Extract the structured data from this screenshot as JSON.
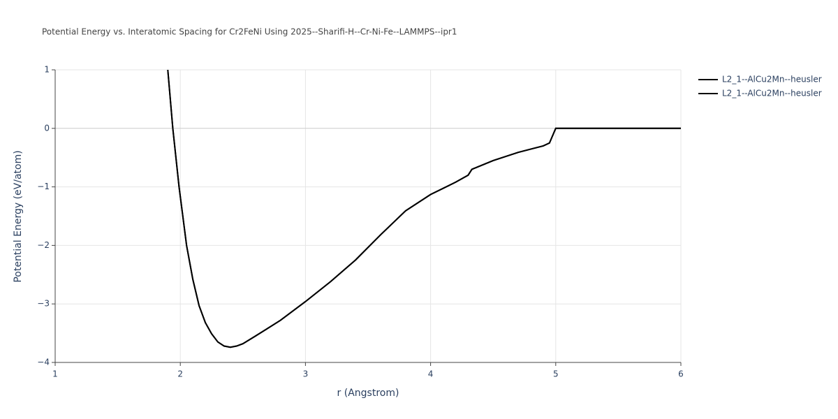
{
  "chart_data": {
    "type": "line",
    "title": "Potential Energy vs. Interatomic Spacing for Cr2FeNi Using 2025--Sharifi-H--Cr-Ni-Fe--LAMMPS--ipr1",
    "x_label": "r (Angstrom)",
    "y_label": "Potential Energy (eV/atom)",
    "x": [
      1.9,
      1.94,
      1.99,
      2.05,
      2.1,
      2.15,
      2.2,
      2.25,
      2.3,
      2.35,
      2.4,
      2.45,
      2.5,
      2.6,
      2.8,
      3.0,
      3.2,
      3.4,
      3.6,
      3.8,
      4.0,
      4.2,
      4.3,
      4.33,
      4.5,
      4.7,
      4.9,
      4.95,
      4.97,
      5.0,
      6.0
    ],
    "series": [
      {
        "name": "L2_1--AlCu2Mn--heusler",
        "color": "#000000",
        "values": [
          1,
          0,
          -1,
          -2,
          -2.58,
          -3.03,
          -3.32,
          -3.51,
          -3.65,
          -3.72,
          -3.74,
          -3.72,
          -3.68,
          -3.55,
          -3.28,
          -2.96,
          -2.62,
          -2.25,
          -1.82,
          -1.41,
          -1.13,
          -0.92,
          -0.8,
          -0.7,
          -0.55,
          -0.41,
          -0.3,
          -0.25,
          -0.15,
          0,
          0
        ]
      },
      {
        "name": "L2_1--AlCu2Mn--heusler",
        "color": "#000000",
        "values": [
          1,
          0,
          -1,
          -2,
          -2.58,
          -3.03,
          -3.32,
          -3.51,
          -3.65,
          -3.72,
          -3.74,
          -3.72,
          -3.68,
          -3.55,
          -3.28,
          -2.96,
          -2.62,
          -2.25,
          -1.82,
          -1.41,
          -1.13,
          -0.92,
          -0.8,
          -0.7,
          -0.55,
          -0.41,
          -0.3,
          -0.25,
          -0.15,
          0,
          0
        ]
      }
    ],
    "xlim": [
      1,
      6
    ],
    "xticks": [
      1,
      2,
      3,
      4,
      5,
      6
    ],
    "ylim": [
      -4,
      1
    ],
    "yticks": [
      {
        "value": -4,
        "label": "−4"
      },
      {
        "value": -3,
        "label": "−3"
      },
      {
        "value": -2,
        "label": "−2"
      },
      {
        "value": -1,
        "label": "−1"
      },
      0,
      1
    ],
    "grid": true
  }
}
